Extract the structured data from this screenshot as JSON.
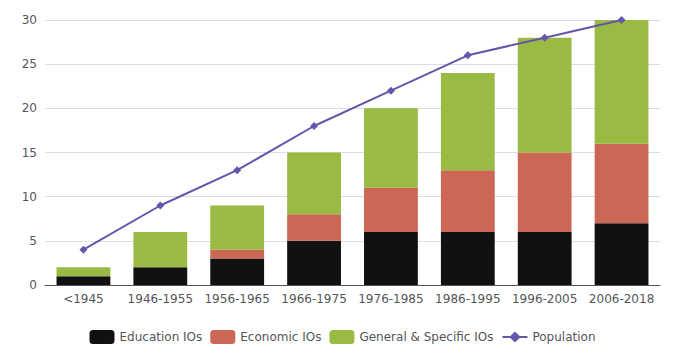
{
  "chart_data": {
    "type": "bar",
    "stacked": true,
    "grid": true,
    "legend": "bottom",
    "categories": [
      "<1945",
      "1946-1955",
      "1956-1965",
      "1966-1975",
      "1976-1985",
      "1986-1995",
      "1996-2005",
      "2006-2018"
    ],
    "series": [
      {
        "name": "Education IOs",
        "type": "bar",
        "color": "#111111",
        "values": [
          1,
          2,
          3,
          5,
          6,
          6,
          6,
          7
        ]
      },
      {
        "name": "Economic IOs",
        "type": "bar",
        "color": "#cc6655",
        "values": [
          0,
          0,
          1,
          3,
          5,
          7,
          9,
          9
        ]
      },
      {
        "name": "General & Specific IOs",
        "type": "bar",
        "color": "#99bb44",
        "values": [
          1,
          4,
          5,
          7,
          9,
          11,
          13,
          14
        ]
      },
      {
        "name": "Population",
        "type": "line",
        "color": "#6655aa",
        "marker": "diamond",
        "values": [
          4,
          9,
          13,
          18,
          22,
          26,
          28,
          30
        ]
      }
    ],
    "ylim": [
      0,
      30
    ],
    "yticks": [
      0,
      5,
      10,
      15,
      20,
      25,
      30
    ]
  }
}
